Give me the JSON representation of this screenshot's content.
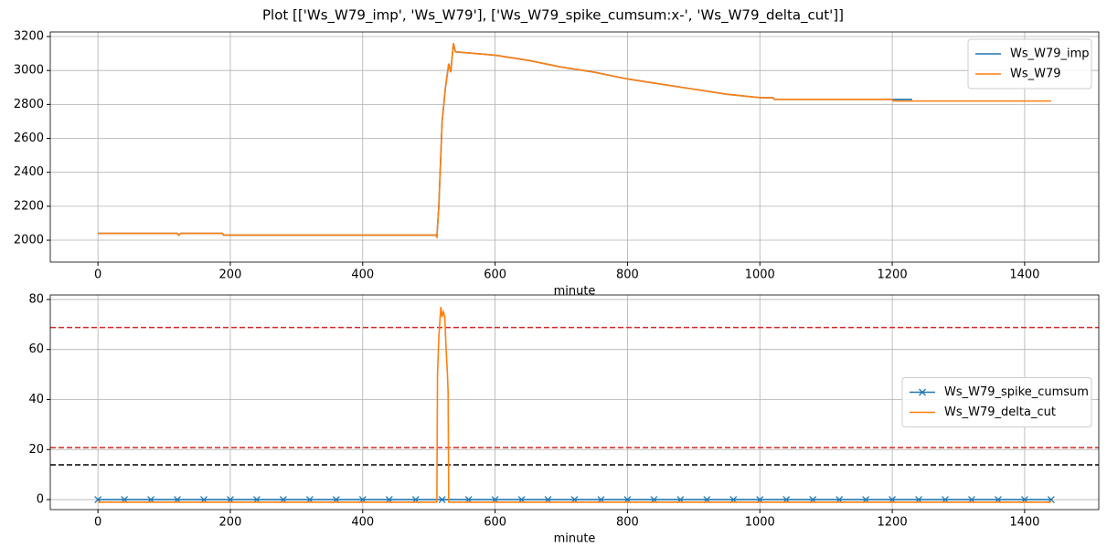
{
  "title": "Plot [['Ws_W79_imp', 'Ws_W79'], ['Ws_W79_spike_cumsum:x-', 'Ws_W79_delta_cut']]",
  "chart_data": [
    {
      "type": "line",
      "xlabel": "minute",
      "xlim": [
        -72,
        1512
      ],
      "ylim": [
        1871,
        3227
      ],
      "xticks": [
        0,
        200,
        400,
        600,
        800,
        1000,
        1200,
        1400
      ],
      "yticks": [
        2000,
        2200,
        2400,
        2600,
        2800,
        3000,
        3200
      ],
      "grid": true,
      "legend": "upper right",
      "series": [
        {
          "name": "Ws_W79_imp",
          "color": "#1f77b4",
          "x": [
            0,
            120,
            122,
            125,
            188,
            190,
            510,
            512,
            515,
            520,
            525,
            530,
            533,
            537,
            540,
            600,
            650,
            700,
            750,
            800,
            850,
            900,
            950,
            1000,
            1020,
            1022,
            1230
          ],
          "values": [
            2040,
            2040,
            2030,
            2040,
            2040,
            2030,
            2030,
            2020,
            2200,
            2700,
            2900,
            3040,
            2990,
            3160,
            3110,
            3090,
            3060,
            3020,
            2990,
            2950,
            2920,
            2890,
            2860,
            2840,
            2840,
            2830,
            2830
          ]
        },
        {
          "name": "Ws_W79",
          "color": "#ff7f0e",
          "x": [
            0,
            120,
            122,
            125,
            188,
            190,
            510,
            512,
            515,
            520,
            525,
            530,
            533,
            537,
            540,
            600,
            650,
            700,
            750,
            800,
            850,
            900,
            950,
            1000,
            1020,
            1022,
            1200,
            1202,
            1440
          ],
          "values": [
            2040,
            2040,
            2030,
            2040,
            2040,
            2030,
            2030,
            2020,
            2200,
            2700,
            2900,
            3040,
            2990,
            3160,
            3110,
            3090,
            3060,
            3020,
            2990,
            2950,
            2920,
            2890,
            2860,
            2840,
            2840,
            2830,
            2830,
            2820,
            2820
          ]
        }
      ]
    },
    {
      "type": "line",
      "xlabel": "minute",
      "xlim": [
        -72,
        1512
      ],
      "ylim": [
        -4,
        81.8
      ],
      "xticks": [
        0,
        200,
        400,
        600,
        800,
        1000,
        1200,
        1400
      ],
      "yticks": [
        0,
        20,
        40,
        60,
        80
      ],
      "grid": true,
      "legend": "center right",
      "hlines": [
        {
          "value": 68.8,
          "color": "#d62728"
        },
        {
          "value": 20.8,
          "color": "#d62728"
        },
        {
          "value": 13.9,
          "color": "#000000"
        }
      ],
      "series": [
        {
          "name": "Ws_W79_spike_cumsum",
          "color": "#1f77b4",
          "marker": "x",
          "x": [
            0,
            40,
            80,
            120,
            160,
            200,
            240,
            280,
            320,
            360,
            400,
            440,
            480,
            520,
            560,
            600,
            640,
            680,
            720,
            760,
            800,
            840,
            880,
            920,
            960,
            1000,
            1040,
            1080,
            1120,
            1160,
            1200,
            1240,
            1280,
            1320,
            1360,
            1400,
            1440
          ],
          "values": [
            0,
            0,
            0,
            0,
            0,
            0,
            0,
            0,
            0,
            0,
            0,
            0,
            0,
            0,
            0,
            0,
            0,
            0,
            0,
            0,
            0,
            0,
            0,
            0,
            0,
            0,
            0,
            0,
            0,
            0,
            0,
            0,
            0,
            0,
            0,
            0,
            0
          ]
        },
        {
          "name": "Ws_W79_delta_cut",
          "color": "#ff7f0e",
          "x": [
            0,
            512,
            513,
            515,
            518,
            520,
            522,
            524,
            526,
            528,
            529,
            530,
            1440
          ],
          "values": [
            -1,
            -1,
            50,
            65,
            77,
            73,
            75,
            73,
            60,
            50,
            43,
            -1,
            -1
          ]
        }
      ]
    }
  ]
}
